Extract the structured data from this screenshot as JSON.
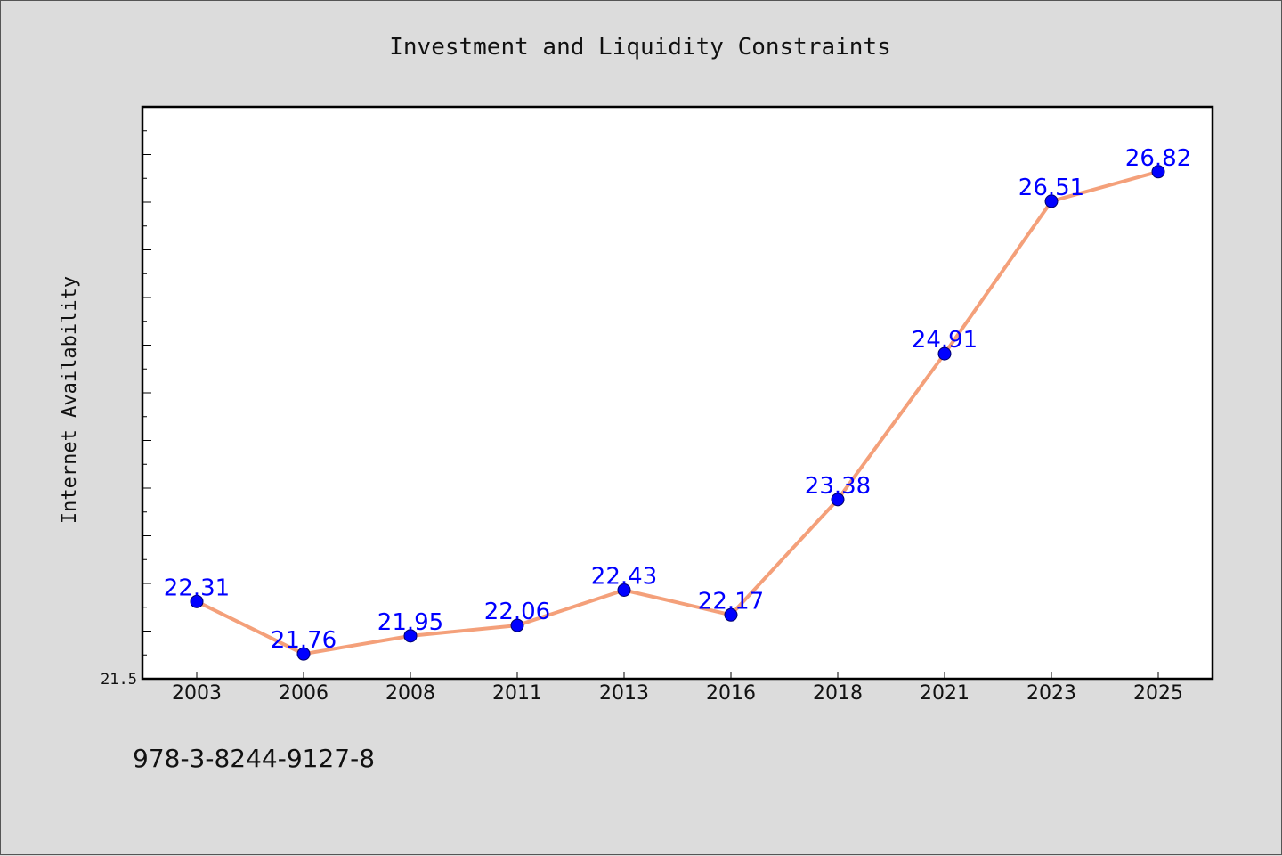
{
  "chart_data": {
    "type": "line",
    "title": "Investment and Liquidity Constraints",
    "xlabel": "",
    "ylabel": "Internet Availability",
    "categories": [
      "2003",
      "2006",
      "2008",
      "2011",
      "2013",
      "2016",
      "2018",
      "2021",
      "2023",
      "2025"
    ],
    "series": [
      {
        "values": [
          22.31,
          21.76,
          21.95,
          22.06,
          22.43,
          22.17,
          23.38,
          24.91,
          26.51,
          26.82
        ],
        "line_color": "#f4a07a",
        "marker_color": "#0000ff"
      }
    ],
    "data_labels": [
      "22.31",
      "21.76",
      "21.95",
      "22.06",
      "22.43",
      "22.17",
      "23.38",
      "24.91",
      "26.51",
      "26.82"
    ],
    "ylim": [
      21.5,
      27.5
    ],
    "y_tick_labels": [
      "21.5"
    ],
    "grid": false
  },
  "footer": {
    "isbn": "978-3-8244-9127-8"
  }
}
